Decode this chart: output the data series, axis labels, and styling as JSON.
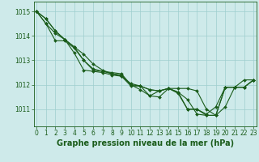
{
  "title": "Graphe pression niveau de la mer (hPa)",
  "bg_color": "#ceeaea",
  "grid_color": "#9ecece",
  "line_color": "#1a5c1a",
  "x_ticks": [
    0,
    1,
    2,
    3,
    4,
    5,
    6,
    7,
    8,
    9,
    10,
    11,
    12,
    13,
    14,
    15,
    16,
    17,
    18,
    19,
    20,
    21,
    22,
    23
  ],
  "y_ticks": [
    1011,
    1012,
    1013,
    1014,
    1015
  ],
  "ylim": [
    1010.3,
    1015.4
  ],
  "xlim": [
    -0.3,
    23.3
  ],
  "lines": [
    [
      1015.0,
      1014.7,
      1014.2,
      1013.85,
      1013.55,
      1013.25,
      1012.85,
      1012.6,
      1012.45,
      1012.35,
      1012.05,
      1011.95,
      1011.8,
      1011.75,
      1011.85,
      1011.85,
      1011.85,
      1011.75,
      1011.0,
      1010.75,
      1011.9,
      1011.9,
      1011.9,
      1012.2
    ],
    [
      1015.0,
      1014.7,
      1014.2,
      1013.85,
      1013.55,
      1013.0,
      1012.65,
      1012.55,
      1012.45,
      1012.4,
      1012.0,
      1011.95,
      1011.55,
      1011.5,
      1011.85,
      1011.65,
      1011.0,
      1011.0,
      1010.8,
      1011.1,
      1011.9,
      1011.9,
      1012.2,
      1012.2
    ],
    [
      1015.0,
      1014.5,
      1013.8,
      1013.8,
      1013.5,
      1013.0,
      1012.6,
      1012.55,
      1012.5,
      1012.45,
      1012.0,
      1011.8,
      1011.55,
      1011.75,
      1011.85,
      1011.7,
      1011.4,
      1010.8,
      1010.75,
      1010.75,
      1011.9,
      1011.9,
      1011.9,
      1012.2
    ],
    [
      1015.0,
      1014.5,
      1014.1,
      1013.85,
      1013.3,
      1012.6,
      1012.55,
      1012.5,
      1012.4,
      1012.35,
      1011.95,
      1011.95,
      1011.8,
      1011.75,
      1011.85,
      1011.7,
      1011.0,
      1011.0,
      1010.75,
      1010.75,
      1011.1,
      1011.9,
      1011.9,
      1012.2
    ]
  ],
  "marker": "D",
  "markersize": 2.0,
  "linewidth": 0.8,
  "title_fontsize": 7,
  "tick_fontsize": 5.5
}
